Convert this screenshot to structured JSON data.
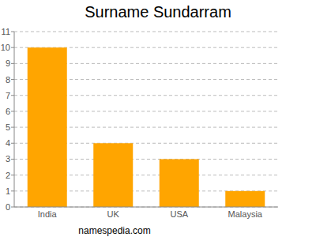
{
  "chart_data": {
    "type": "bar",
    "title": "Surname Sundarram",
    "categories": [
      "India",
      "UK",
      "USA",
      "Malaysia"
    ],
    "values": [
      10,
      4,
      3,
      1
    ],
    "color": "#ffa500",
    "ylim": [
      0,
      11
    ],
    "yticks": [
      0,
      1,
      2,
      3,
      4,
      5,
      6,
      7,
      8,
      9,
      10,
      11
    ],
    "grid": true,
    "annotations": [
      "namespedia.com"
    ]
  }
}
